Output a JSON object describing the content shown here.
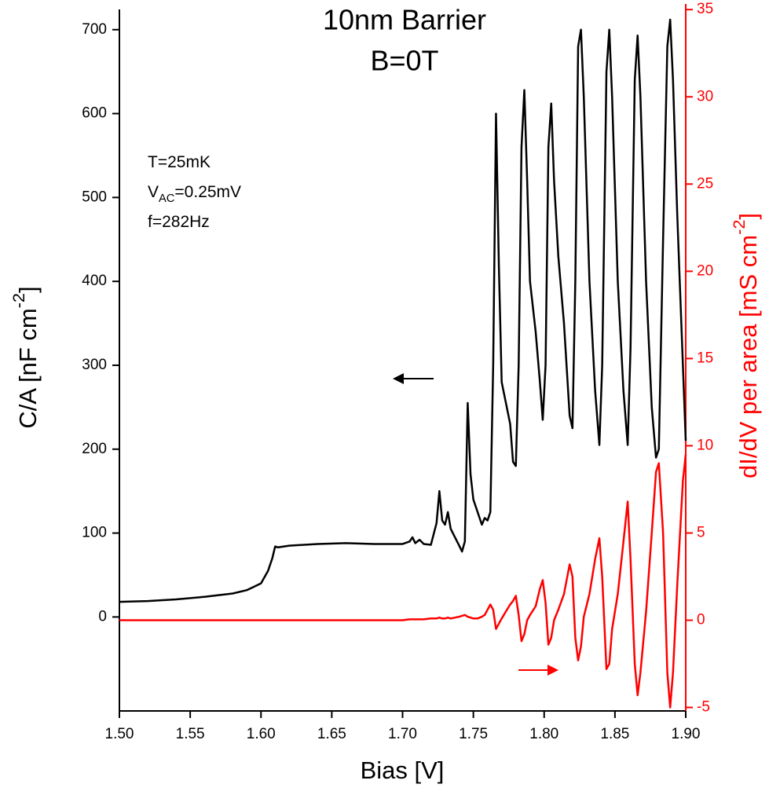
{
  "chart_data": {
    "type": "line",
    "title": [
      "10nm Barrier",
      "B=0T"
    ],
    "x_label": "Bias [V]",
    "y_label": {
      "text": "C/A [nF cm",
      "sup": "-2",
      "rest": "]"
    },
    "y2_label": {
      "text": "dI/dV per area [mS cm",
      "sup": "-2",
      "rest": "]"
    },
    "annotations": [
      {
        "text": "T=25mK"
      },
      {
        "text": "V",
        "sub": "AC",
        "rest": "=0.25mV"
      },
      {
        "text": "f=282Hz"
      }
    ],
    "xlim": [
      1.5,
      1.9
    ],
    "ylim": [
      -112,
      726
    ],
    "y2lim": [
      -5.2,
      35.1
    ],
    "xticks": [
      {
        "value": 1.5,
        "label": "1.50"
      },
      1.55,
      {
        "value": 1.6,
        "label": "1.60"
      },
      1.65,
      {
        "value": 1.7,
        "label": "1.70"
      },
      1.75,
      {
        "value": 1.8,
        "label": "1.80"
      },
      1.85,
      {
        "value": 1.9,
        "label": "1.90"
      }
    ],
    "yticks": [
      0,
      100,
      200,
      300,
      400,
      500,
      600,
      700
    ],
    "y2ticks": [
      -5,
      0,
      5,
      10,
      15,
      20,
      25,
      30,
      35
    ],
    "x": [
      1.5,
      1.52,
      1.54,
      1.56,
      1.58,
      1.59,
      1.6,
      1.605,
      1.608,
      1.61,
      1.612,
      1.62,
      1.64,
      1.66,
      1.68,
      1.7,
      1.705,
      1.707,
      1.709,
      1.712,
      1.715,
      1.72,
      1.724,
      1.726,
      1.728,
      1.73,
      1.732,
      1.734,
      1.737,
      1.74,
      1.742,
      1.744,
      1.746,
      1.748,
      1.75,
      1.753,
      1.756,
      1.758,
      1.76,
      1.762,
      1.764,
      1.766,
      1.768,
      1.77,
      1.773,
      1.776,
      1.778,
      1.78,
      1.782,
      1.784,
      1.786,
      1.788,
      1.79,
      1.794,
      1.797,
      1.799,
      1.801,
      1.803,
      1.805,
      1.807,
      1.81,
      1.814,
      1.818,
      1.82,
      1.822,
      1.824,
      1.826,
      1.828,
      1.832,
      1.836,
      1.839,
      1.841,
      1.844,
      1.846,
      1.848,
      1.852,
      1.856,
      1.859,
      1.861,
      1.864,
      1.866,
      1.868,
      1.872,
      1.876,
      1.879,
      1.881,
      1.884,
      1.887,
      1.889,
      1.891,
      1.894,
      1.898,
      1.9
    ],
    "series": [
      {
        "color": "#000000",
        "values": [
          18,
          19,
          21,
          24,
          28,
          32,
          40,
          55,
          70,
          84,
          83,
          85,
          87,
          88,
          87,
          87,
          90,
          95,
          88,
          92,
          87,
          86,
          112,
          150,
          115,
          110,
          125,
          105,
          95,
          85,
          78,
          90,
          255,
          170,
          140,
          125,
          110,
          118,
          115,
          125,
          300,
          600,
          420,
          280,
          255,
          230,
          185,
          180,
          300,
          560,
          628,
          520,
          400,
          340,
          280,
          235,
          300,
          560,
          612,
          520,
          430,
          350,
          240,
          225,
          400,
          680,
          700,
          620,
          400,
          270,
          205,
          300,
          650,
          700,
          620,
          400,
          270,
          205,
          320,
          640,
          693,
          620,
          400,
          250,
          190,
          200,
          450,
          680,
          712,
          640,
          480,
          300,
          210
        ]
      },
      {
        "color": "#ff0000",
        "axis": "y2",
        "values": [
          0,
          0,
          0,
          0,
          0,
          0,
          0,
          0,
          0,
          0,
          0,
          0,
          0,
          0,
          0,
          0,
          0.05,
          0.05,
          0.05,
          0.05,
          0.05,
          0.1,
          0.1,
          0.15,
          0.1,
          0.1,
          0.15,
          0.1,
          0.15,
          0.2,
          0.25,
          0.3,
          0.2,
          0.15,
          0.1,
          0.1,
          0.2,
          0.3,
          0.6,
          0.9,
          0.6,
          -0.5,
          -0.2,
          0.1,
          0.5,
          0.9,
          1.1,
          1.4,
          0.3,
          -1.2,
          -0.8,
          0,
          0.3,
          0.8,
          1.8,
          2.3,
          1.0,
          -1.4,
          -1.0,
          0,
          0.6,
          1.5,
          3.2,
          2.5,
          -1.0,
          -2.3,
          -1.5,
          0.2,
          1.5,
          3.5,
          4.7,
          2.5,
          -2.8,
          -2.5,
          -0.5,
          1.5,
          4.5,
          6.8,
          3.5,
          -2.5,
          -4.3,
          -3.0,
          0.5,
          5.0,
          8.5,
          9.0,
          5,
          -3,
          -5,
          -3,
          2,
          8,
          9.5
        ]
      }
    ]
  }
}
